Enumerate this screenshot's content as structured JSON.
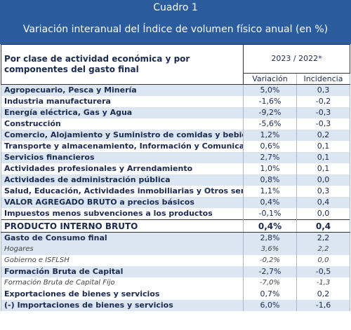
{
  "header": {
    "label": "Cuadro 1",
    "title": "Variación interanual del Índice de volumen físico anual (en %)"
  },
  "table": {
    "header_left": "Por clase de actividad económica y por componentes del gasto final",
    "period": "2023 / 2022*",
    "columns": [
      "Variación",
      "Incidencia"
    ],
    "rows": [
      [
        "Agropecuario, Pesca y Minería",
        "5,0%",
        "0,3"
      ],
      [
        "Industria manufacturera",
        "-1,6%",
        "-0,2"
      ],
      [
        "Energía eléctrica, Gas y Agua",
        "-9,2%",
        "-0,3"
      ],
      [
        "Construcción",
        "-5,6%",
        "-0,3"
      ],
      [
        "Comercio, Alojamiento y Suministro de comidas y bebidas",
        "1,2%",
        "0,2"
      ],
      [
        "Transporte y almacenamiento, Información y Comunicaciones",
        "0,6%",
        "0,1"
      ],
      [
        "Servicios financieros",
        "2,7%",
        "0,1"
      ],
      [
        "Actividades profesionales y Arrendamiento",
        "1,0%",
        "0,1"
      ],
      [
        "Actividades de administración pública",
        "0,8%",
        "0,0"
      ],
      [
        "Salud, Educación, Actividades inmobiliarias y Otros servicios",
        "1,1%",
        "0,3"
      ],
      [
        "VALOR AGREGADO BRUTO a precios básicos",
        "0,4%",
        "0,4"
      ],
      [
        "Impuestos menos subvenciones a los productos",
        "-0,1%",
        "0,0"
      ],
      [
        "PRODUCTO INTERNO BRUTO",
        "0,4%",
        "0,4"
      ],
      [
        "Gasto de Consumo final",
        "2,8%",
        "2,2"
      ],
      [
        "Hogares",
        "3,6%",
        "2,2"
      ],
      [
        "Gobierno e ISFLSH",
        "-0,2%",
        "0,0"
      ],
      [
        "Formación Bruta de Capital",
        "-2,7%",
        "-0,5"
      ],
      [
        "Formación Bruta de Capital Fijo",
        "-7,0%",
        "-1,3"
      ],
      [
        "Exportaciones de bienes y servicios",
        "0,7%",
        "0,2"
      ],
      [
        "(-) Importaciones de bienes y servicios",
        "6,0%",
        "-1,6"
      ]
    ]
  }
}
